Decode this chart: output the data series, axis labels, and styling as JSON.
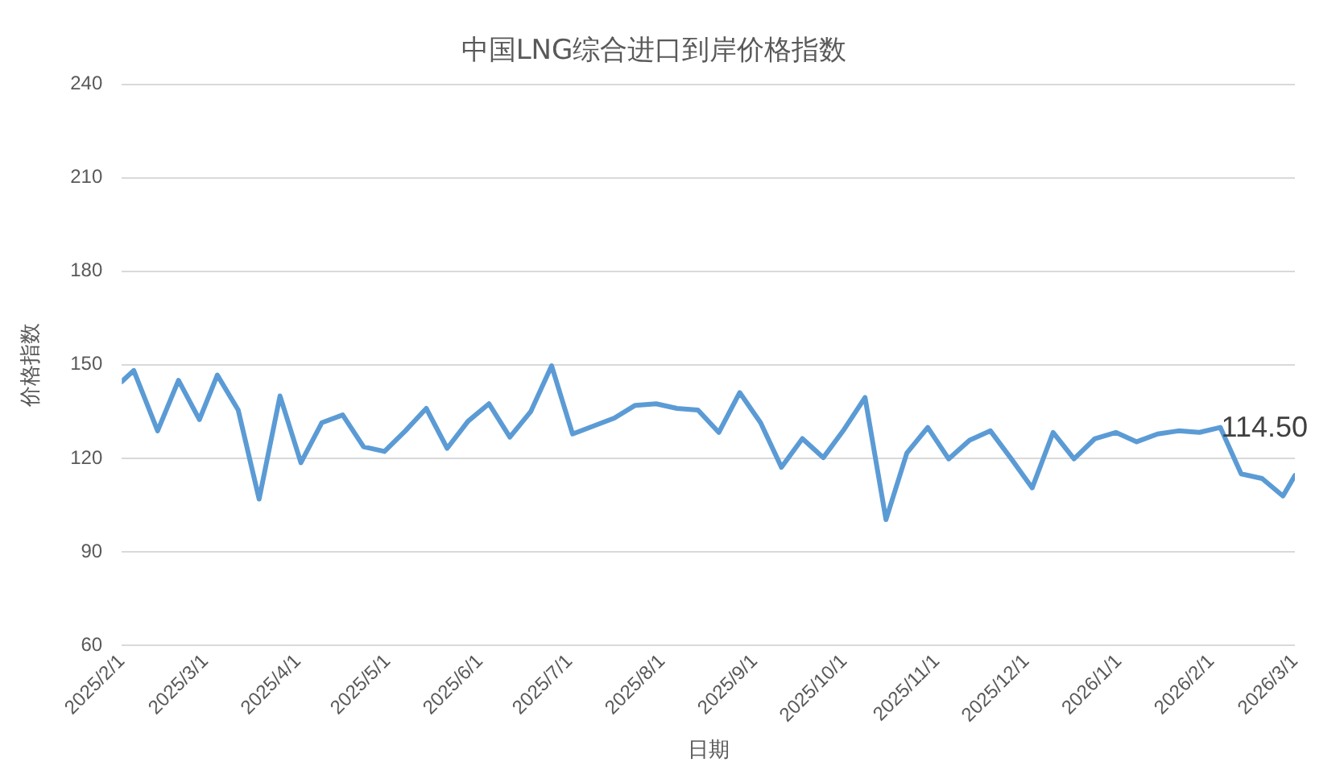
{
  "chart_data": {
    "type": "line",
    "title": "中国LNG综合进口到岸价格指数",
    "xlabel": "日期",
    "ylabel": "价格指数",
    "x": [
      "2025-02-01",
      "2025-02-05",
      "2025-02-13",
      "2025-02-20",
      "2025-02-27",
      "2025-03-05",
      "2025-03-12",
      "2025-03-19",
      "2025-03-26",
      "2025-04-02",
      "2025-04-09",
      "2025-04-16",
      "2025-04-23",
      "2025-04-30",
      "2025-05-07",
      "2025-05-14",
      "2025-05-21",
      "2025-05-28",
      "2025-06-04",
      "2025-06-11",
      "2025-06-18",
      "2025-06-25",
      "2025-07-02",
      "2025-07-16",
      "2025-07-23",
      "2025-07-30",
      "2025-08-06",
      "2025-08-13",
      "2025-08-20",
      "2025-08-27",
      "2025-09-03",
      "2025-09-10",
      "2025-09-17",
      "2025-09-24",
      "2025-10-01",
      "2025-10-08",
      "2025-10-15",
      "2025-10-22",
      "2025-10-29",
      "2025-11-05",
      "2025-11-12",
      "2025-11-19",
      "2025-11-26",
      "2025-12-03",
      "2025-12-10",
      "2025-12-17",
      "2025-12-24",
      "2025-12-31",
      "2026-01-07",
      "2026-01-14",
      "2026-01-21",
      "2026-01-28",
      "2026-02-04",
      "2026-02-11",
      "2026-02-18",
      "2026-02-25",
      "2026-03-01"
    ],
    "series": [
      {
        "color": "#5b9bd5",
        "values": [
          144.6,
          148.2,
          128.8,
          145,
          132.4,
          146.7,
          135.5,
          106.9,
          140,
          118.6,
          131.4,
          133.9,
          123.7,
          122.2,
          128.8,
          136,
          123.2,
          131.9,
          137.5,
          126.8,
          135,
          149.7,
          127.8,
          132.9,
          137,
          137.5,
          136,
          135.5,
          128.3,
          141.1,
          131.4,
          117.1,
          126.3,
          120.2,
          129.3,
          139.5,
          100.3,
          121.7,
          129.9,
          119.8,
          125.8,
          128.8,
          119.8,
          110.5,
          128.3,
          119.8,
          126.3,
          128.3,
          125.3,
          127.8,
          128.8,
          128.3,
          129.9,
          115,
          113.5,
          107.9,
          114.5
        ]
      }
    ],
    "xlim": [
      "2025-02-01",
      "2026-03-01"
    ],
    "xticks": [
      {
        "value": "2025-02-01",
        "label": "2025/2/1"
      },
      {
        "value": "2025-03-01",
        "label": "2025/3/1"
      },
      {
        "value": "2025-04-01",
        "label": "2025/4/1"
      },
      {
        "value": "2025-05-01",
        "label": "2025/5/1"
      },
      {
        "value": "2025-06-01",
        "label": "2025/6/1"
      },
      {
        "value": "2025-07-01",
        "label": "2025/7/1"
      },
      {
        "value": "2025-08-01",
        "label": "2025/8/1"
      },
      {
        "value": "2025-09-01",
        "label": "2025/9/1"
      },
      {
        "value": "2025-10-01",
        "label": "2025/10/1"
      },
      {
        "value": "2025-11-01",
        "label": "2025/11/1"
      },
      {
        "value": "2025-12-01",
        "label": "2025/12/1"
      },
      {
        "value": "2026-01-01",
        "label": "2026/1/1"
      },
      {
        "value": "2026-02-01",
        "label": "2026/2/1"
      },
      {
        "value": "2026-03-01",
        "label": "2026/3/1"
      }
    ],
    "ylim": [
      60,
      240
    ],
    "yticks": [
      60,
      90,
      120,
      150,
      180,
      210,
      240
    ],
    "grid": "y",
    "legend": false,
    "marker": "none",
    "line_style": "solid",
    "annotations": [
      {
        "text": "114.50",
        "x": "2026-03-01",
        "y": 114.5
      }
    ]
  }
}
